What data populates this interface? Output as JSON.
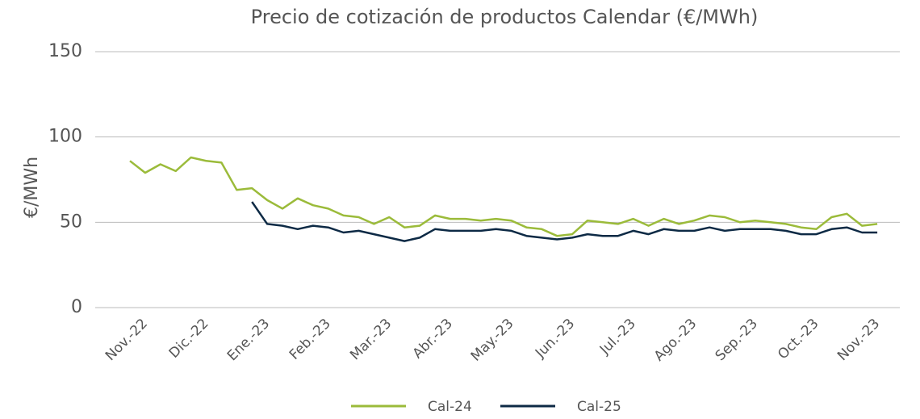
{
  "chart_data": {
    "type": "line",
    "title": "Precio de cotización de productos Calendar (€/MWh)",
    "y_label": "€/MWh",
    "categories": [
      null,
      "Nov.-22",
      null,
      null,
      null,
      "Dic.-22",
      null,
      null,
      null,
      "Ene.-23",
      null,
      null,
      null,
      "Feb.-23",
      null,
      null,
      null,
      "Mar.-23",
      null,
      null,
      null,
      "Abr.-23",
      null,
      null,
      null,
      "May.-23",
      null,
      null,
      null,
      "Jun.-23",
      null,
      null,
      null,
      "Jul.-23",
      null,
      null,
      null,
      "Ago.-23",
      null,
      null,
      null,
      "Sep.-23",
      null,
      null,
      null,
      "Oct.-23",
      null,
      null,
      null,
      "Nov.-23"
    ],
    "series": [
      {
        "name": "Cal-24",
        "color": "#9bbb3a",
        "values": [
          86,
          79,
          84,
          80,
          88,
          86,
          85,
          69,
          70,
          63,
          58,
          64,
          60,
          58,
          54,
          53,
          49,
          53,
          47,
          48,
          54,
          52,
          52,
          51,
          52,
          51,
          47,
          46,
          42,
          43,
          51,
          50,
          49,
          52,
          48,
          52,
          49,
          51,
          54,
          53,
          50,
          51,
          50,
          49,
          47,
          46,
          53,
          55,
          48,
          49
        ]
      },
      {
        "name": "Cal-25",
        "color": "#0d2a45",
        "values": [
          null,
          null,
          null,
          null,
          null,
          null,
          null,
          null,
          62,
          49,
          48,
          46,
          48,
          47,
          44,
          45,
          43,
          41,
          39,
          41,
          46,
          45,
          45,
          45,
          46,
          45,
          42,
          41,
          40,
          41,
          43,
          42,
          42,
          45,
          43,
          46,
          45,
          45,
          47,
          45,
          46,
          46,
          46,
          45,
          43,
          43,
          46,
          47,
          44,
          44
        ]
      }
    ],
    "ylim": [
      0,
      150
    ],
    "yticks": [
      0,
      50,
      100,
      150
    ],
    "grid": true
  }
}
